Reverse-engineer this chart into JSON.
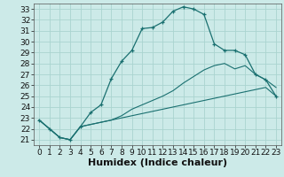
{
  "xlabel": "Humidex (Indice chaleur)",
  "bg_color": "#cceae8",
  "grid_color": "#aad4d0",
  "line_color": "#1a7070",
  "xlim": [
    -0.5,
    23.5
  ],
  "ylim": [
    20.5,
    33.5
  ],
  "xticks": [
    0,
    1,
    2,
    3,
    4,
    5,
    6,
    7,
    8,
    9,
    10,
    11,
    12,
    13,
    14,
    15,
    16,
    17,
    18,
    19,
    20,
    21,
    22,
    23
  ],
  "yticks": [
    21,
    22,
    23,
    24,
    25,
    26,
    27,
    28,
    29,
    30,
    31,
    32,
    33
  ],
  "line1_x": [
    0,
    1,
    2,
    3,
    4,
    5,
    6,
    7,
    8,
    9,
    10,
    11,
    12,
    13,
    14,
    15,
    16,
    17,
    18,
    19,
    20,
    21,
    22,
    23
  ],
  "line1_y": [
    22.8,
    22.0,
    21.2,
    21.0,
    22.2,
    23.5,
    24.2,
    26.6,
    28.2,
    29.2,
    31.2,
    31.3,
    31.8,
    32.8,
    33.2,
    33.0,
    32.5,
    29.8,
    29.2,
    29.2,
    28.8,
    27.0,
    26.5,
    25.0
  ],
  "line2_x": [
    0,
    1,
    2,
    3,
    4,
    5,
    6,
    7,
    8,
    9,
    10,
    11,
    12,
    13,
    14,
    15,
    16,
    17,
    18,
    19,
    20,
    21,
    22,
    23
  ],
  "line2_y": [
    22.8,
    22.0,
    21.2,
    21.0,
    22.2,
    22.4,
    22.6,
    22.8,
    23.0,
    23.2,
    23.4,
    23.6,
    23.8,
    24.0,
    24.2,
    24.4,
    24.6,
    24.8,
    25.0,
    25.2,
    25.4,
    25.6,
    25.8,
    25.0
  ],
  "line3_x": [
    0,
    1,
    2,
    3,
    4,
    5,
    6,
    7,
    8,
    9,
    10,
    11,
    12,
    13,
    14,
    15,
    16,
    17,
    18,
    19,
    20,
    21,
    22,
    23
  ],
  "line3_y": [
    22.8,
    22.0,
    21.2,
    21.0,
    22.2,
    22.4,
    22.6,
    22.8,
    23.2,
    23.8,
    24.2,
    24.6,
    25.0,
    25.5,
    26.2,
    26.8,
    27.4,
    27.8,
    28.0,
    27.5,
    27.8,
    27.0,
    26.5,
    25.8
  ],
  "tick_fontsize": 6.5,
  "xlabel_fontsize": 8
}
